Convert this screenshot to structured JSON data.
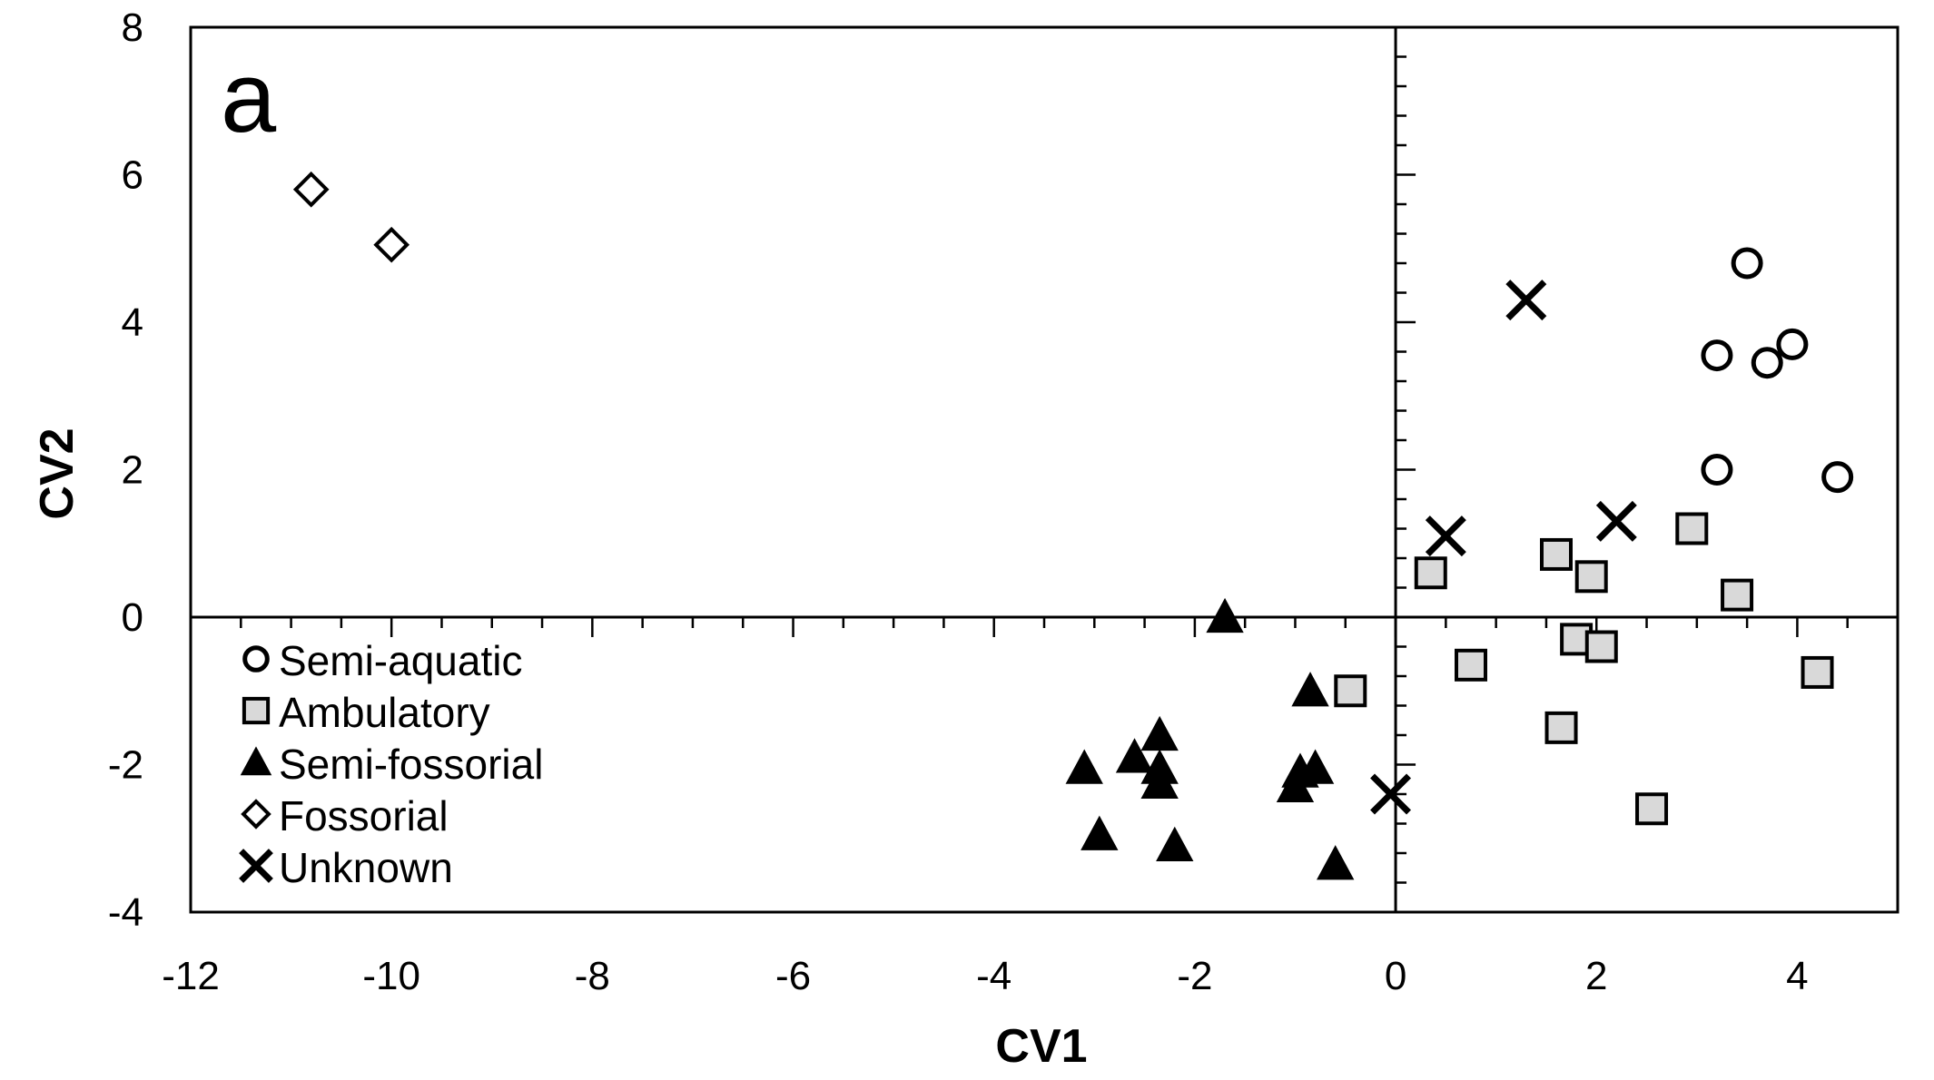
{
  "chart_data": {
    "type": "scatter",
    "panel_label": "a",
    "xlabel": "CV1",
    "ylabel": "CV2",
    "xlim": [
      -12,
      5
    ],
    "ylim": [
      -4,
      8
    ],
    "x_ticks": [
      -12,
      -10,
      -8,
      -6,
      -4,
      -2,
      0,
      2,
      4
    ],
    "y_ticks": [
      -4,
      -2,
      0,
      2,
      4,
      6,
      8
    ],
    "grid": false,
    "reference_lines": {
      "x": 0,
      "y": 0
    },
    "legend_position": "bottom-left",
    "series": [
      {
        "name": "Semi-aquatic",
        "marker": "circle-open",
        "points": [
          [
            3.5,
            4.8
          ],
          [
            3.2,
            3.55
          ],
          [
            3.7,
            3.45
          ],
          [
            3.95,
            3.7
          ],
          [
            3.2,
            2.0
          ],
          [
            4.4,
            1.9
          ]
        ]
      },
      {
        "name": "Ambulatory",
        "marker": "square-gray",
        "points": [
          [
            0.35,
            0.6
          ],
          [
            1.6,
            0.85
          ],
          [
            1.95,
            0.55
          ],
          [
            2.95,
            1.2
          ],
          [
            3.4,
            0.3
          ],
          [
            0.75,
            -0.65
          ],
          [
            1.8,
            -0.3
          ],
          [
            2.05,
            -0.4
          ],
          [
            1.65,
            -1.5
          ],
          [
            2.55,
            -2.6
          ],
          [
            4.2,
            -0.75
          ],
          [
            -0.45,
            -1.0
          ]
        ]
      },
      {
        "name": "Semi-fossorial",
        "marker": "triangle-filled",
        "points": [
          [
            -1.7,
            0.0
          ],
          [
            -3.1,
            -2.05
          ],
          [
            -2.6,
            -1.9
          ],
          [
            -2.35,
            -1.6
          ],
          [
            -2.35,
            -2.05
          ],
          [
            -2.35,
            -2.25
          ],
          [
            -2.95,
            -2.95
          ],
          [
            -2.2,
            -3.1
          ],
          [
            -0.85,
            -1.0
          ],
          [
            -0.95,
            -2.1
          ],
          [
            -1.0,
            -2.3
          ],
          [
            -0.8,
            -2.05
          ],
          [
            -0.6,
            -3.35
          ]
        ]
      },
      {
        "name": "Fossorial",
        "marker": "diamond-open",
        "points": [
          [
            -10.8,
            5.8
          ],
          [
            -10.0,
            5.05
          ]
        ]
      },
      {
        "name": "Unknown",
        "marker": "x",
        "points": [
          [
            1.3,
            4.3
          ],
          [
            0.5,
            1.1
          ],
          [
            2.2,
            1.3
          ],
          [
            -0.05,
            -2.4
          ]
        ]
      }
    ]
  }
}
